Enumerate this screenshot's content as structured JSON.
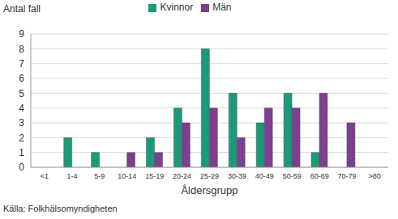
{
  "chart_data": {
    "type": "bar",
    "y_label": "Antal fall",
    "x_label": "Åldersgrupp",
    "source": "Källa: Folkhälsomyndigheten",
    "categories": [
      "<1",
      "1-4",
      "5-9",
      "10-14",
      "15-19",
      "20-24",
      "25-29",
      "30-39",
      "40-49",
      "50-59",
      "60-69",
      "70-79",
      ">80"
    ],
    "series": [
      {
        "name": "Kvinnor",
        "color": "#1b9a7b",
        "values": [
          0,
          2,
          1,
          0,
          2,
          4,
          8,
          5,
          3,
          5,
          1,
          0,
          0
        ]
      },
      {
        "name": "Män",
        "color": "#7d3f8f",
        "values": [
          0,
          0,
          0,
          1,
          1,
          3,
          4,
          2,
          4,
          4,
          5,
          3,
          0
        ]
      }
    ],
    "ylim": [
      0,
      9
    ],
    "yticks": [
      0,
      1,
      2,
      3,
      4,
      5,
      6,
      7,
      8,
      9
    ],
    "grid": true,
    "legend": "top"
  }
}
